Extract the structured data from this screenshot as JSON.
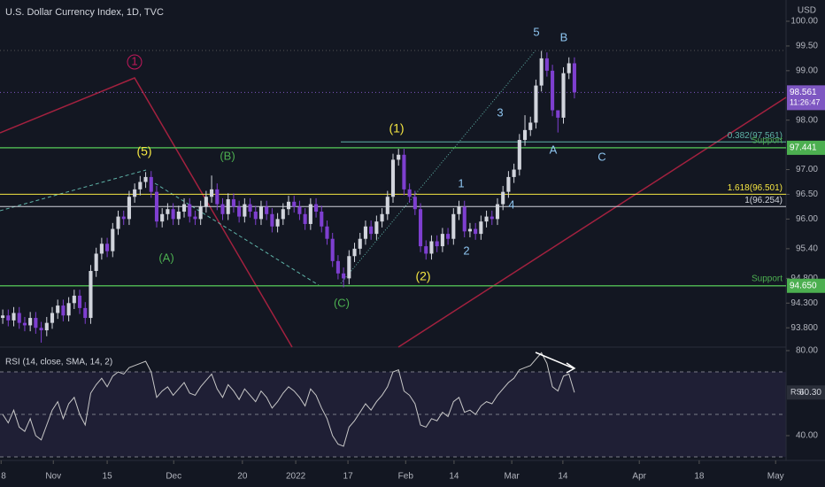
{
  "title": "U.S. Dollar Currency Index, 1D, TVC",
  "annotations": [
    "1",
    "(5)",
    "(B)",
    "(A)",
    "(C)",
    "(1)",
    "(2)",
    "1",
    "2",
    "3",
    "4",
    "5",
    "B",
    "A",
    "C"
  ],
  "chart_data": [
    {
      "type": "candlestick",
      "ylabel": "USD",
      "up_color": "#d1d4dc",
      "down_color": "#7e3fd0",
      "xlim": [
        0,
        143
      ],
      "ylim": [
        93.41,
        100.43
      ],
      "xticks": [
        {
          "value": 0.2,
          "label": "8"
        },
        {
          "value": 9.7,
          "label": "Nov"
        },
        {
          "value": 19.5,
          "label": "15"
        },
        {
          "value": 31.6,
          "label": "Dec"
        },
        {
          "value": 44.1,
          "label": "20"
        },
        {
          "value": 53.8,
          "label": "2022"
        },
        {
          "value": 63.3,
          "label": "17"
        },
        {
          "value": 73.8,
          "label": "Feb"
        },
        {
          "value": 82.6,
          "label": "14"
        },
        {
          "value": 93.1,
          "label": "Mar"
        },
        {
          "value": 102.4,
          "label": "14"
        },
        {
          "value": 116.3,
          "label": "Apr"
        },
        {
          "value": 127.2,
          "label": "18"
        },
        {
          "value": 141.1,
          "label": "May"
        }
      ],
      "yticks": [
        {
          "value": 100,
          "label": "100.00"
        },
        {
          "value": 99.5,
          "label": "99.50"
        },
        {
          "value": 99,
          "label": "99.00"
        },
        {
          "value": 98,
          "label": "98.00"
        },
        {
          "value": 97,
          "label": "97.00"
        },
        {
          "value": 96.5,
          "label": "96.50"
        },
        {
          "value": 96,
          "label": "96.00"
        },
        {
          "value": 95.4,
          "label": "95.40"
        },
        {
          "value": 94.8,
          "label": "94.800"
        },
        {
          "value": 94.3,
          "label": "94.300"
        },
        {
          "value": 93.8,
          "label": "93.800"
        }
      ],
      "levels": [
        {
          "value": 97.561,
          "label": "0.382(97.561)",
          "color": "#5fb3a8"
        },
        {
          "value": 96.501,
          "label": "1.618(96.501)",
          "color": "#f5e642"
        },
        {
          "value": 96.254,
          "label": "1(96.254)",
          "color": "#d1d4dc"
        }
      ],
      "supports": [
        {
          "value": 97.441,
          "label": "Support",
          "color": "#4caf50"
        },
        {
          "value": 94.65,
          "label": "Support",
          "value_label": "94.650",
          "color": "#4caf50"
        }
      ],
      "countdown": "11:26:47",
      "last_color": "#7e57c2",
      "open": [
        94.0,
        94.05,
        93.95,
        94.1,
        93.9,
        93.85,
        94.0,
        93.8,
        93.75,
        93.9,
        94.1,
        94.25,
        94.05,
        94.3,
        94.45,
        94.2,
        94.0,
        94.95,
        95.3,
        95.5,
        95.35,
        95.8,
        96.05,
        96.0,
        96.45,
        96.6,
        96.75,
        96.85,
        96.55,
        95.95,
        96.1,
        96.2,
        96.0,
        96.15,
        96.3,
        96.05,
        96.0,
        96.25,
        96.45,
        96.6,
        96.3,
        96.1,
        96.4,
        96.25,
        96.05,
        96.3,
        96.15,
        96.0,
        96.25,
        96.1,
        95.85,
        96.0,
        96.2,
        96.35,
        96.25,
        96.1,
        95.9,
        96.3,
        96.15,
        95.85,
        95.6,
        95.15,
        94.9,
        94.8,
        95.25,
        95.4,
        95.6,
        95.85,
        95.7,
        95.95,
        96.1,
        96.45,
        97.2,
        97.3,
        96.6,
        96.45,
        96.2,
        95.45,
        95.3,
        95.55,
        95.45,
        95.7,
        95.6,
        96.1,
        96.25,
        95.75,
        95.8,
        95.7,
        95.95,
        96.05,
        96.0,
        96.3,
        96.55,
        96.85,
        97.0,
        97.6,
        97.8,
        97.95,
        98.7,
        99.25,
        99.0,
        98.2,
        98.05,
        98.95,
        99.15
      ],
      "high": [
        94.17,
        94.17,
        94.22,
        94.22,
        94.02,
        94.12,
        94.12,
        93.92,
        94.02,
        94.22,
        94.37,
        94.37,
        94.42,
        94.57,
        94.57,
        94.32,
        95.07,
        95.42,
        95.62,
        95.62,
        95.92,
        96.17,
        96.17,
        96.57,
        96.72,
        96.87,
        96.95,
        96.97,
        96.67,
        96.22,
        96.32,
        96.32,
        96.27,
        96.42,
        96.42,
        96.17,
        96.37,
        96.57,
        96.88,
        96.72,
        96.42,
        96.52,
        96.52,
        96.37,
        96.42,
        96.42,
        96.27,
        96.37,
        96.37,
        96.22,
        96.12,
        96.32,
        96.47,
        96.47,
        96.37,
        96.22,
        96.42,
        96.42,
        96.27,
        95.97,
        95.72,
        95.27,
        95.02,
        95.37,
        95.52,
        95.72,
        95.97,
        95.97,
        96.07,
        96.22,
        96.57,
        97.32,
        97.42,
        97.42,
        96.72,
        96.57,
        96.32,
        95.57,
        95.67,
        95.67,
        95.82,
        95.82,
        96.22,
        96.37,
        96.37,
        95.92,
        95.92,
        96.07,
        96.17,
        96.17,
        96.42,
        96.67,
        96.97,
        97.12,
        97.72,
        98.1,
        98.07,
        98.82,
        99.4,
        99.37,
        99.12,
        98.17,
        99.07,
        99.27,
        99.27
      ],
      "low": [
        93.88,
        93.83,
        93.83,
        93.78,
        93.73,
        93.73,
        93.68,
        93.5,
        93.63,
        93.78,
        93.98,
        93.93,
        93.93,
        94.18,
        94.08,
        93.88,
        93.88,
        94.83,
        95.18,
        95.23,
        95.23,
        95.68,
        95.88,
        95.88,
        96.33,
        96.48,
        96.63,
        96.43,
        95.83,
        95.83,
        95.98,
        95.88,
        95.88,
        96.03,
        95.93,
        95.88,
        95.88,
        96.13,
        96.33,
        96.18,
        95.98,
        95.98,
        96.13,
        95.93,
        95.93,
        96.03,
        95.88,
        95.88,
        95.98,
        95.73,
        95.73,
        95.88,
        96.08,
        96.13,
        95.98,
        95.78,
        95.78,
        96.03,
        95.73,
        95.48,
        95.03,
        94.78,
        94.62,
        94.68,
        95.13,
        95.28,
        95.48,
        95.58,
        95.58,
        95.83,
        95.98,
        96.33,
        97.08,
        96.48,
        96.33,
        96.08,
        95.33,
        95.18,
        95.18,
        95.33,
        95.33,
        95.48,
        95.48,
        95.98,
        95.63,
        95.63,
        95.58,
        95.58,
        95.83,
        95.88,
        95.88,
        96.18,
        96.43,
        96.73,
        96.88,
        97.48,
        97.68,
        97.83,
        98.58,
        98.88,
        98.08,
        97.75,
        97.93,
        98.83,
        98.44
      ],
      "close": [
        94.05,
        93.95,
        94.1,
        93.9,
        93.85,
        94.0,
        93.8,
        93.75,
        93.9,
        94.1,
        94.25,
        94.05,
        94.3,
        94.45,
        94.2,
        94.0,
        94.95,
        95.3,
        95.5,
        95.35,
        95.8,
        96.05,
        96.0,
        96.45,
        96.6,
        96.75,
        96.85,
        96.55,
        95.95,
        96.1,
        96.2,
        96.0,
        96.15,
        96.3,
        96.05,
        96.0,
        96.25,
        96.45,
        96.6,
        96.3,
        96.1,
        96.4,
        96.25,
        96.05,
        96.3,
        96.15,
        96.0,
        96.25,
        96.1,
        95.85,
        96.0,
        96.2,
        96.35,
        96.25,
        96.1,
        95.9,
        96.3,
        96.15,
        95.85,
        95.6,
        95.15,
        94.9,
        94.8,
        95.25,
        95.4,
        95.6,
        95.85,
        95.7,
        95.95,
        96.1,
        96.45,
        97.2,
        97.3,
        96.6,
        96.45,
        96.2,
        95.45,
        95.3,
        95.55,
        95.45,
        95.7,
        95.6,
        96.1,
        96.25,
        95.75,
        95.8,
        95.7,
        95.95,
        96.05,
        96.0,
        96.3,
        96.55,
        96.85,
        97.0,
        97.6,
        97.8,
        97.95,
        98.7,
        99.25,
        99.0,
        98.2,
        98.05,
        98.95,
        99.15,
        98.561
      ]
    },
    {
      "type": "line",
      "title": "RSI (14, close, SMA, 14, 2)",
      "name": "RSI",
      "color": "#c8c8c8",
      "ylim": [
        29.17,
        81.67
      ],
      "yticks": [
        {
          "value": 80,
          "label": "80.00"
        },
        {
          "value": 40,
          "label": "40.00"
        }
      ],
      "band": [
        30,
        70
      ],
      "midline": 50,
      "band_color": "#7e57c2",
      "values": [
        50,
        46,
        52,
        44,
        42,
        48,
        40,
        38,
        45,
        52,
        56,
        48,
        55,
        58,
        50,
        45,
        60,
        64,
        67,
        63,
        68,
        70,
        69,
        72,
        73,
        74,
        75,
        70,
        58,
        61,
        63,
        59,
        62,
        65,
        60,
        59,
        63,
        66,
        69,
        62,
        58,
        64,
        61,
        57,
        62,
        59,
        56,
        61,
        58,
        53,
        56,
        60,
        63,
        61,
        58,
        54,
        62,
        59,
        53,
        48,
        40,
        36,
        35,
        44,
        47,
        51,
        55,
        52,
        56,
        59,
        63,
        70,
        71,
        61,
        59,
        55,
        45,
        44,
        48,
        47,
        51,
        49,
        56,
        58,
        51,
        52,
        50,
        54,
        56,
        55,
        59,
        62,
        65,
        67,
        71,
        72,
        73,
        76,
        79,
        74,
        63,
        61,
        68,
        69,
        60.3
      ],
      "value_labels": {
        "104": "60.30"
      }
    }
  ]
}
